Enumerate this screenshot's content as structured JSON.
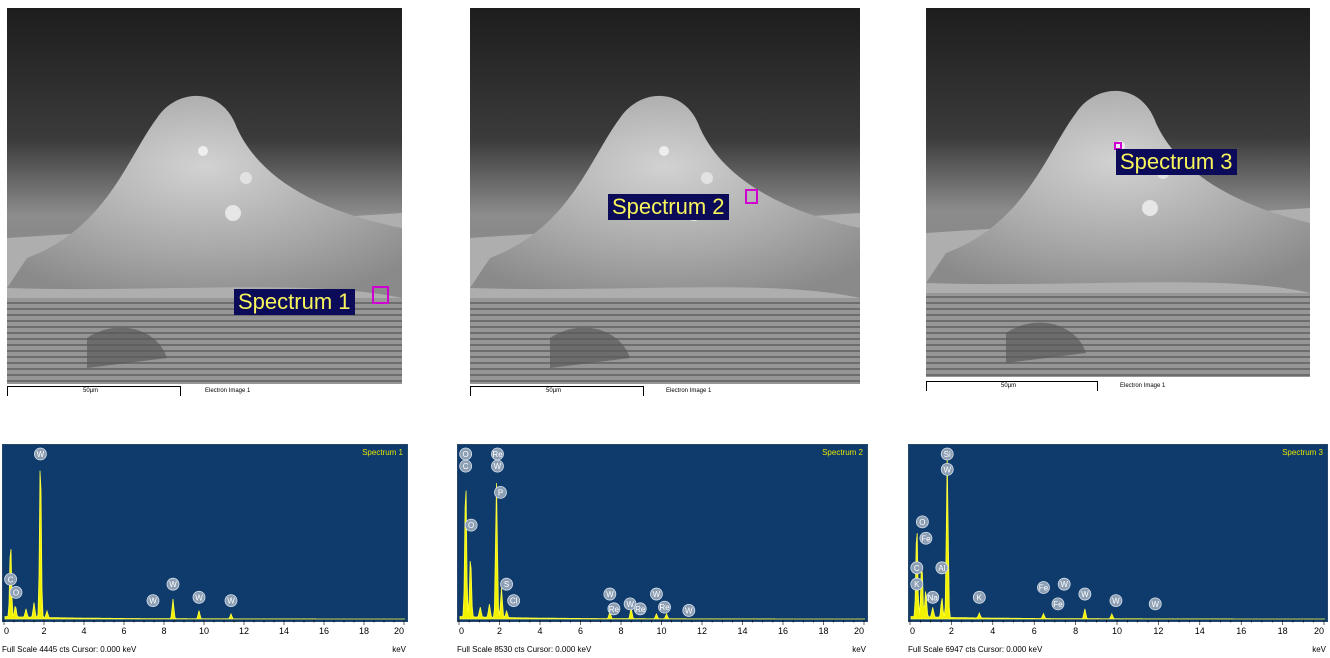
{
  "micrographs": [
    {
      "scale_bar": "50µm",
      "image_label": "Electron Image 1",
      "spectrum_label": "Spectrum 1"
    },
    {
      "scale_bar": "50µm",
      "image_label": "Electron Image 1",
      "spectrum_label": "Spectrum 2"
    },
    {
      "scale_bar": "50µm",
      "image_label": "Electron Image 1",
      "spectrum_label": "Spectrum 3"
    }
  ],
  "spectra": [
    {
      "title": "Spectrum 1",
      "status": "Full Scale 4445 cts  Cursor: 0.000 keV",
      "unit": "keV",
      "ticks": [
        "0",
        "2",
        "4",
        "6",
        "8",
        "10",
        "12",
        "14",
        "16",
        "18",
        "20"
      ],
      "peaks": [
        {
          "kev": 0.28,
          "h": 0.46
        },
        {
          "kev": 0.52,
          "h": 0.07
        },
        {
          "kev": 1.05,
          "h": 0.05
        },
        {
          "kev": 1.45,
          "h": 0.09
        },
        {
          "kev": 1.77,
          "h": 1.0
        },
        {
          "kev": 2.1,
          "h": 0.04
        },
        {
          "kev": 8.4,
          "h": 0.12
        },
        {
          "kev": 9.7,
          "h": 0.05
        },
        {
          "kev": 11.3,
          "h": 0.03
        }
      ],
      "labels": [
        {
          "text": "W",
          "kev": 1.77,
          "h": 1.0
        },
        {
          "text": "C",
          "kev": 0.28,
          "h": 0.23
        },
        {
          "text": "O",
          "kev": 0.55,
          "h": 0.15
        },
        {
          "text": "W",
          "kev": 7.4,
          "h": 0.1
        },
        {
          "text": "W",
          "kev": 8.4,
          "h": 0.2
        },
        {
          "text": "W",
          "kev": 9.7,
          "h": 0.12
        },
        {
          "text": "W",
          "kev": 11.3,
          "h": 0.1
        }
      ]
    },
    {
      "title": "Spectrum 2",
      "status": "Full Scale 8530 cts  Cursor: 0.000 keV",
      "unit": "keV",
      "ticks": [
        "0",
        "2",
        "4",
        "6",
        "8",
        "10",
        "12",
        "14",
        "16",
        "18",
        "20"
      ],
      "peaks": [
        {
          "kev": 0.28,
          "h": 0.86
        },
        {
          "kev": 0.52,
          "h": 0.38
        },
        {
          "kev": 1.0,
          "h": 0.06
        },
        {
          "kev": 1.45,
          "h": 0.08
        },
        {
          "kev": 1.8,
          "h": 0.82
        },
        {
          "kev": 2.05,
          "h": 0.18
        },
        {
          "kev": 2.3,
          "h": 0.04
        },
        {
          "kev": 7.4,
          "h": 0.04
        },
        {
          "kev": 8.45,
          "h": 0.07
        },
        {
          "kev": 9.7,
          "h": 0.03
        },
        {
          "kev": 10.2,
          "h": 0.03
        }
      ],
      "labels": [
        {
          "text": "O",
          "kev": 0.28,
          "h": 1.02
        },
        {
          "text": "C",
          "kev": 0.28,
          "h": 0.92
        },
        {
          "text": "O",
          "kev": 0.55,
          "h": 0.56
        },
        {
          "text": "Re",
          "kev": 1.85,
          "h": 1.02
        },
        {
          "text": "W",
          "kev": 1.85,
          "h": 0.92
        },
        {
          "text": "P",
          "kev": 2.0,
          "h": 0.76
        },
        {
          "text": "S",
          "kev": 2.3,
          "h": 0.2
        },
        {
          "text": "Cl",
          "kev": 2.65,
          "h": 0.1
        },
        {
          "text": "W",
          "kev": 7.4,
          "h": 0.14
        },
        {
          "text": "Re",
          "kev": 7.6,
          "h": 0.05
        },
        {
          "text": "W",
          "kev": 8.4,
          "h": 0.08
        },
        {
          "text": "Re",
          "kev": 8.9,
          "h": 0.05
        },
        {
          "text": "W",
          "kev": 9.7,
          "h": 0.14
        },
        {
          "text": "Re",
          "kev": 10.1,
          "h": 0.06
        },
        {
          "text": "W",
          "kev": 11.3,
          "h": 0.04
        }
      ]
    },
    {
      "title": "Spectrum 3",
      "status": "Full Scale 6947 cts  Cursor: 0.000 keV",
      "unit": "keV",
      "ticks": [
        "0",
        "2",
        "4",
        "6",
        "8",
        "10",
        "12",
        "14",
        "16",
        "18",
        "20"
      ],
      "peaks": [
        {
          "kev": 0.28,
          "h": 0.57
        },
        {
          "kev": 0.52,
          "h": 0.34
        },
        {
          "kev": 0.71,
          "h": 0.16
        },
        {
          "kev": 1.05,
          "h": 0.06
        },
        {
          "kev": 1.49,
          "h": 0.12
        },
        {
          "kev": 1.75,
          "h": 0.98
        },
        {
          "kev": 3.3,
          "h": 0.03
        },
        {
          "kev": 6.4,
          "h": 0.03
        },
        {
          "kev": 8.4,
          "h": 0.06
        },
        {
          "kev": 9.7,
          "h": 0.03
        }
      ],
      "labels": [
        {
          "text": "Si",
          "kev": 1.75,
          "h": 1.0
        },
        {
          "text": "W",
          "kev": 1.75,
          "h": 0.9
        },
        {
          "text": "O",
          "kev": 0.55,
          "h": 0.58
        },
        {
          "text": "Fe",
          "kev": 0.72,
          "h": 0.48
        },
        {
          "text": "C",
          "kev": 0.28,
          "h": 0.3
        },
        {
          "text": "K",
          "kev": 0.28,
          "h": 0.2
        },
        {
          "text": "Na",
          "kev": 1.05,
          "h": 0.12
        },
        {
          "text": "Al",
          "kev": 1.49,
          "h": 0.3
        },
        {
          "text": "K",
          "kev": 3.3,
          "h": 0.12
        },
        {
          "text": "Fe",
          "kev": 6.4,
          "h": 0.18
        },
        {
          "text": "Fe",
          "kev": 7.1,
          "h": 0.08
        },
        {
          "text": "W",
          "kev": 7.4,
          "h": 0.2
        },
        {
          "text": "W",
          "kev": 8.4,
          "h": 0.14
        },
        {
          "text": "W",
          "kev": 9.9,
          "h": 0.1
        },
        {
          "text": "W",
          "kev": 11.8,
          "h": 0.08
        }
      ]
    }
  ]
}
